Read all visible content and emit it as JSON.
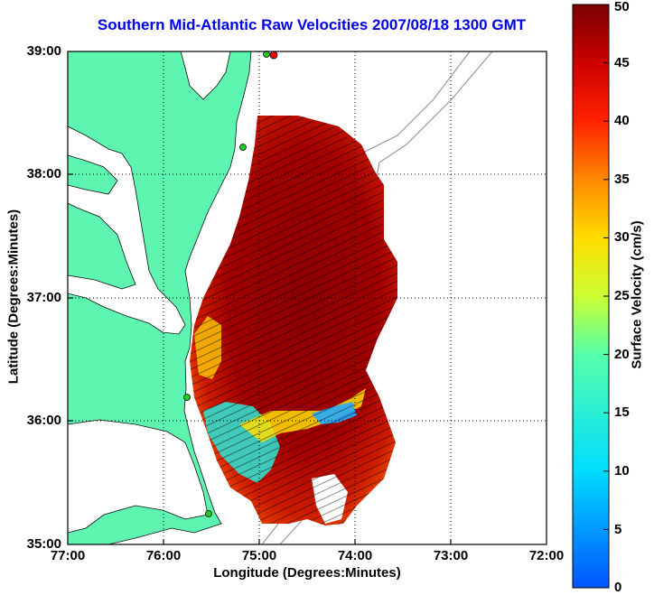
{
  "title": "Southern Mid-Atlantic Raw Velocities 2007/08/18 1300 GMT",
  "xlabel": "Longitude (Degrees:Minutes)",
  "ylabel": "Latitude (Degrees:Minutes)",
  "colorbar_label": "Surface Velocity (cm/s)",
  "x_ticks": [
    "77:00",
    "76:00",
    "75:00",
    "74:00",
    "73:00",
    "72:00"
  ],
  "y_ticks": [
    "39:00",
    "38:00",
    "37:00",
    "36:00",
    "35:00"
  ],
  "colorbar_ticks": [
    "50",
    "45",
    "40",
    "35",
    "30",
    "25",
    "20",
    "15",
    "10",
    "5",
    "0"
  ],
  "colors": {
    "land": "#5ef5b0",
    "title": "#0000ee",
    "high_velocity": "#8b0000",
    "station_green": "#22cc22",
    "station_red": "#ee0000"
  },
  "map": {
    "lon_range": [
      -77,
      -72
    ],
    "lat_range": [
      35,
      39
    ],
    "colorbar_range": [
      0,
      50
    ],
    "grid": "dotted",
    "stations": [
      {
        "lon": -75.12,
        "lat": 38.97,
        "color": "red"
      },
      {
        "lon": -75.16,
        "lat": 38.97,
        "color": "green"
      },
      {
        "lon": -75.18,
        "lat": 38.22,
        "color": "green"
      },
      {
        "lon": -75.75,
        "lat": 36.18,
        "color": "green"
      },
      {
        "lon": -75.47,
        "lat": 35.25,
        "color": "green"
      }
    ]
  }
}
